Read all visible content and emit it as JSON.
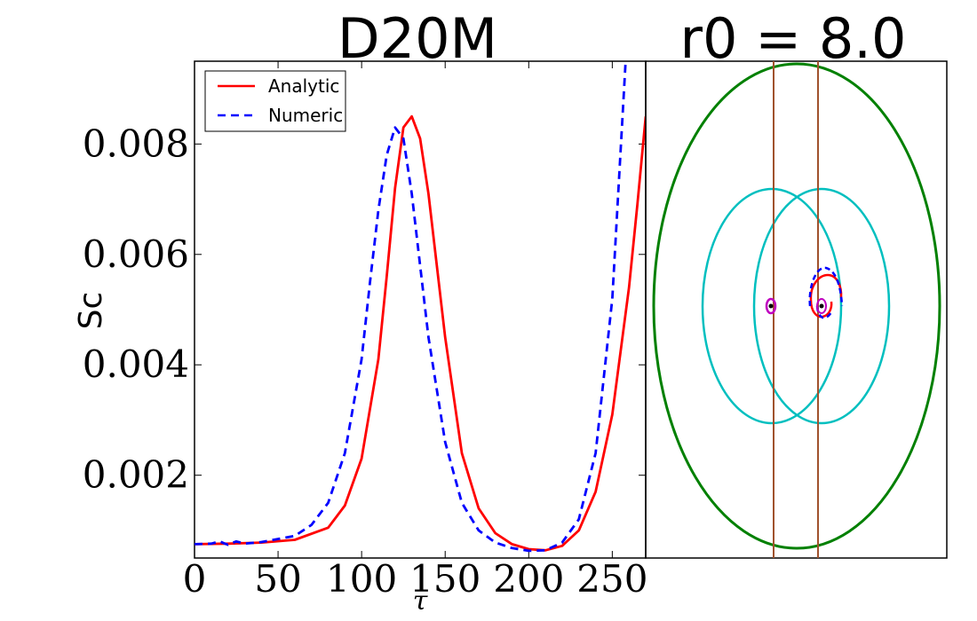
{
  "chart_data": [
    {
      "type": "line",
      "title": "D20M",
      "xlabel": "τ",
      "ylabel": "Sc",
      "xlim": [
        0,
        270
      ],
      "ylim": [
        0.0005,
        0.0095
      ],
      "xticks": [
        0,
        50,
        100,
        150,
        200,
        250
      ],
      "xtick_labels": [
        "0",
        "50",
        "100",
        "150",
        "200",
        "250"
      ],
      "yticks": [
        0.002,
        0.004,
        0.006,
        0.008
      ],
      "ytick_labels": [
        "0.002",
        "0.004",
        "0.006",
        "0.008"
      ],
      "legend_position": "top-left",
      "series": [
        {
          "name": "Analytic",
          "color": "#ff0000",
          "style": "solid",
          "x": [
            0,
            20,
            40,
            60,
            80,
            90,
            100,
            110,
            115,
            120,
            125,
            130,
            135,
            140,
            145,
            150,
            160,
            170,
            180,
            190,
            200,
            210,
            220,
            230,
            240,
            250,
            260,
            265,
            270
          ],
          "y": [
            0.00075,
            0.00076,
            0.00078,
            0.00083,
            0.00105,
            0.00145,
            0.0023,
            0.0041,
            0.0056,
            0.0072,
            0.0083,
            0.0085,
            0.0081,
            0.0071,
            0.0058,
            0.0045,
            0.0024,
            0.0014,
            0.00095,
            0.00075,
            0.00066,
            0.00064,
            0.00072,
            0.001,
            0.0017,
            0.0031,
            0.0054,
            0.0069,
            0.0085
          ]
        },
        {
          "name": "Numeric",
          "color": "#0000ff",
          "style": "dashed",
          "x": [
            0,
            10,
            15,
            20,
            25,
            30,
            40,
            60,
            70,
            80,
            90,
            100,
            105,
            110,
            115,
            120,
            125,
            130,
            135,
            140,
            150,
            160,
            170,
            180,
            190,
            200,
            210,
            220,
            230,
            240,
            250,
            258
          ],
          "y": [
            0.00075,
            0.00076,
            0.0008,
            0.00074,
            0.0008,
            0.00076,
            0.00079,
            0.0009,
            0.0011,
            0.0015,
            0.0024,
            0.0041,
            0.0055,
            0.0068,
            0.0078,
            0.0083,
            0.0081,
            0.0071,
            0.0058,
            0.0045,
            0.0026,
            0.0015,
            0.001,
            0.00078,
            0.00068,
            0.00063,
            0.00064,
            0.00078,
            0.0012,
            0.0024,
            0.0052,
            0.0095
          ]
        }
      ]
    },
    {
      "type": "orbit-diagram",
      "title": "r0 = 8.0",
      "axes_ticks": "none",
      "colors": {
        "outer_ellipse": "#008000",
        "inner_circles": "#00bfbf",
        "vertical_lines": "#a0522d",
        "small_ring": "#bf00bf",
        "analytic_path": "#ff0000",
        "numeric_path": "#0000ff",
        "centers": "#000000"
      }
    }
  ]
}
